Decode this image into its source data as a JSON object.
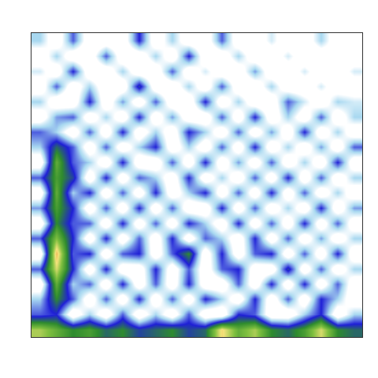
{
  "chart_data": {
    "type": "heatmap",
    "tick_labels": false,
    "zlim": [
      0,
      1
    ],
    "cells": [
      [
        0.2,
        0,
        0.3,
        0,
        0,
        0,
        0.35,
        0,
        0.2,
        0,
        0,
        0.3,
        0,
        0,
        0.15,
        0,
        0,
        0.2,
        0,
        0.1
      ],
      [
        0,
        0.2,
        0,
        0,
        0.3,
        0,
        0,
        0.2,
        0,
        0.35,
        0,
        0,
        0.2,
        0,
        0,
        0.15,
        0,
        0,
        0.1,
        0
      ],
      [
        0.15,
        0,
        0.35,
        0,
        0,
        0.2,
        0,
        0,
        0.3,
        0,
        0.15,
        0,
        0,
        0.25,
        0,
        0,
        0.15,
        0,
        0,
        0.15
      ],
      [
        0,
        0.3,
        0,
        0.2,
        0,
        0,
        0.4,
        0,
        0,
        0.2,
        0,
        0.3,
        0,
        0,
        0.2,
        0,
        0,
        0.15,
        0,
        0
      ],
      [
        0.2,
        0,
        0,
        0.35,
        0,
        0.25,
        0,
        0.3,
        0,
        0,
        0.35,
        0,
        0.2,
        0,
        0,
        0.3,
        0.15,
        0,
        0.2,
        0.15
      ],
      [
        0,
        0.25,
        0.3,
        0,
        0.2,
        0,
        0.35,
        0,
        0.25,
        0,
        0,
        0.3,
        0,
        0.35,
        0,
        0.2,
        0,
        0.3,
        0,
        0.2
      ],
      [
        0.3,
        0.2,
        0,
        0.3,
        0,
        0.35,
        0,
        0.2,
        0,
        0.35,
        0.2,
        0,
        0.3,
        0,
        0.25,
        0,
        0.35,
        0,
        0.2,
        0
      ],
      [
        0.2,
        0.45,
        0.3,
        0,
        0.3,
        0,
        0.2,
        0.35,
        0,
        0.2,
        0,
        0.3,
        0,
        0.35,
        0,
        0.2,
        0,
        0.25,
        0,
        0.3
      ],
      [
        0,
        0.6,
        0.3,
        0.2,
        0,
        0.35,
        0,
        0,
        0.3,
        0,
        0.35,
        0,
        0.25,
        0,
        0.3,
        0,
        0.2,
        0,
        0.35,
        0
      ],
      [
        0.3,
        0.55,
        0.4,
        0,
        0.35,
        0,
        0.3,
        0.2,
        0,
        0.35,
        0,
        0.2,
        0,
        0.3,
        0,
        0.35,
        0,
        0.3,
        0,
        0.2
      ],
      [
        0,
        0.6,
        0.2,
        0.35,
        0,
        0.3,
        0,
        0.35,
        0,
        0.2,
        0.35,
        0,
        0.3,
        0,
        0.35,
        0,
        0.3,
        0,
        0.2,
        0
      ],
      [
        0.25,
        0.55,
        0.35,
        0,
        0.3,
        0,
        0.35,
        0,
        0.3,
        0,
        0,
        0.35,
        0,
        0.3,
        0,
        0.2,
        0,
        0.35,
        0,
        0.25
      ],
      [
        0,
        0.5,
        0.3,
        0.3,
        0,
        0.35,
        0,
        0.3,
        0,
        0.35,
        0.2,
        0,
        0.35,
        0,
        0.3,
        0,
        0.35,
        0,
        0.3,
        0
      ],
      [
        0.3,
        0.65,
        0.35,
        0,
        0.35,
        0,
        0.3,
        0,
        0.35,
        0,
        0.3,
        0.2,
        0,
        0.35,
        0,
        0.3,
        0,
        0.25,
        0,
        0.2
      ],
      [
        0,
        0.85,
        0.3,
        0.35,
        0,
        0.3,
        0.35,
        0,
        0.3,
        0.5,
        0,
        0.35,
        0,
        0.3,
        0.35,
        0,
        0.3,
        0,
        0.35,
        0
      ],
      [
        0.3,
        0.75,
        0.35,
        0,
        0.35,
        0,
        0,
        0.35,
        0,
        0.3,
        0,
        0.3,
        0.35,
        0,
        0,
        0.4,
        0,
        0.3,
        0,
        0.2
      ],
      [
        0,
        0.6,
        0.2,
        0.3,
        0,
        0.35,
        0,
        0.3,
        0,
        0.35,
        0,
        0,
        0.3,
        0,
        0.35,
        0,
        0.35,
        0,
        0.3,
        0
      ],
      [
        0.2,
        0.5,
        0.3,
        0,
        0.3,
        0,
        0.35,
        0,
        0.3,
        0,
        0.35,
        0.2,
        0,
        0.35,
        0,
        0.3,
        0,
        0.35,
        0.2,
        0
      ],
      [
        0.3,
        0.35,
        0,
        0.2,
        0,
        0.3,
        0,
        0.2,
        0,
        0.3,
        0,
        0,
        0.35,
        0.3,
        0,
        0,
        0.2,
        0.35,
        0,
        0.2
      ],
      [
        0.7,
        0.6,
        0.5,
        0.55,
        0.45,
        0.5,
        0.4,
        0.45,
        0.5,
        0.4,
        0.45,
        0.8,
        0.6,
        0.7,
        0.5,
        0.45,
        0.55,
        0.75,
        0.5,
        0.45
      ]
    ]
  }
}
